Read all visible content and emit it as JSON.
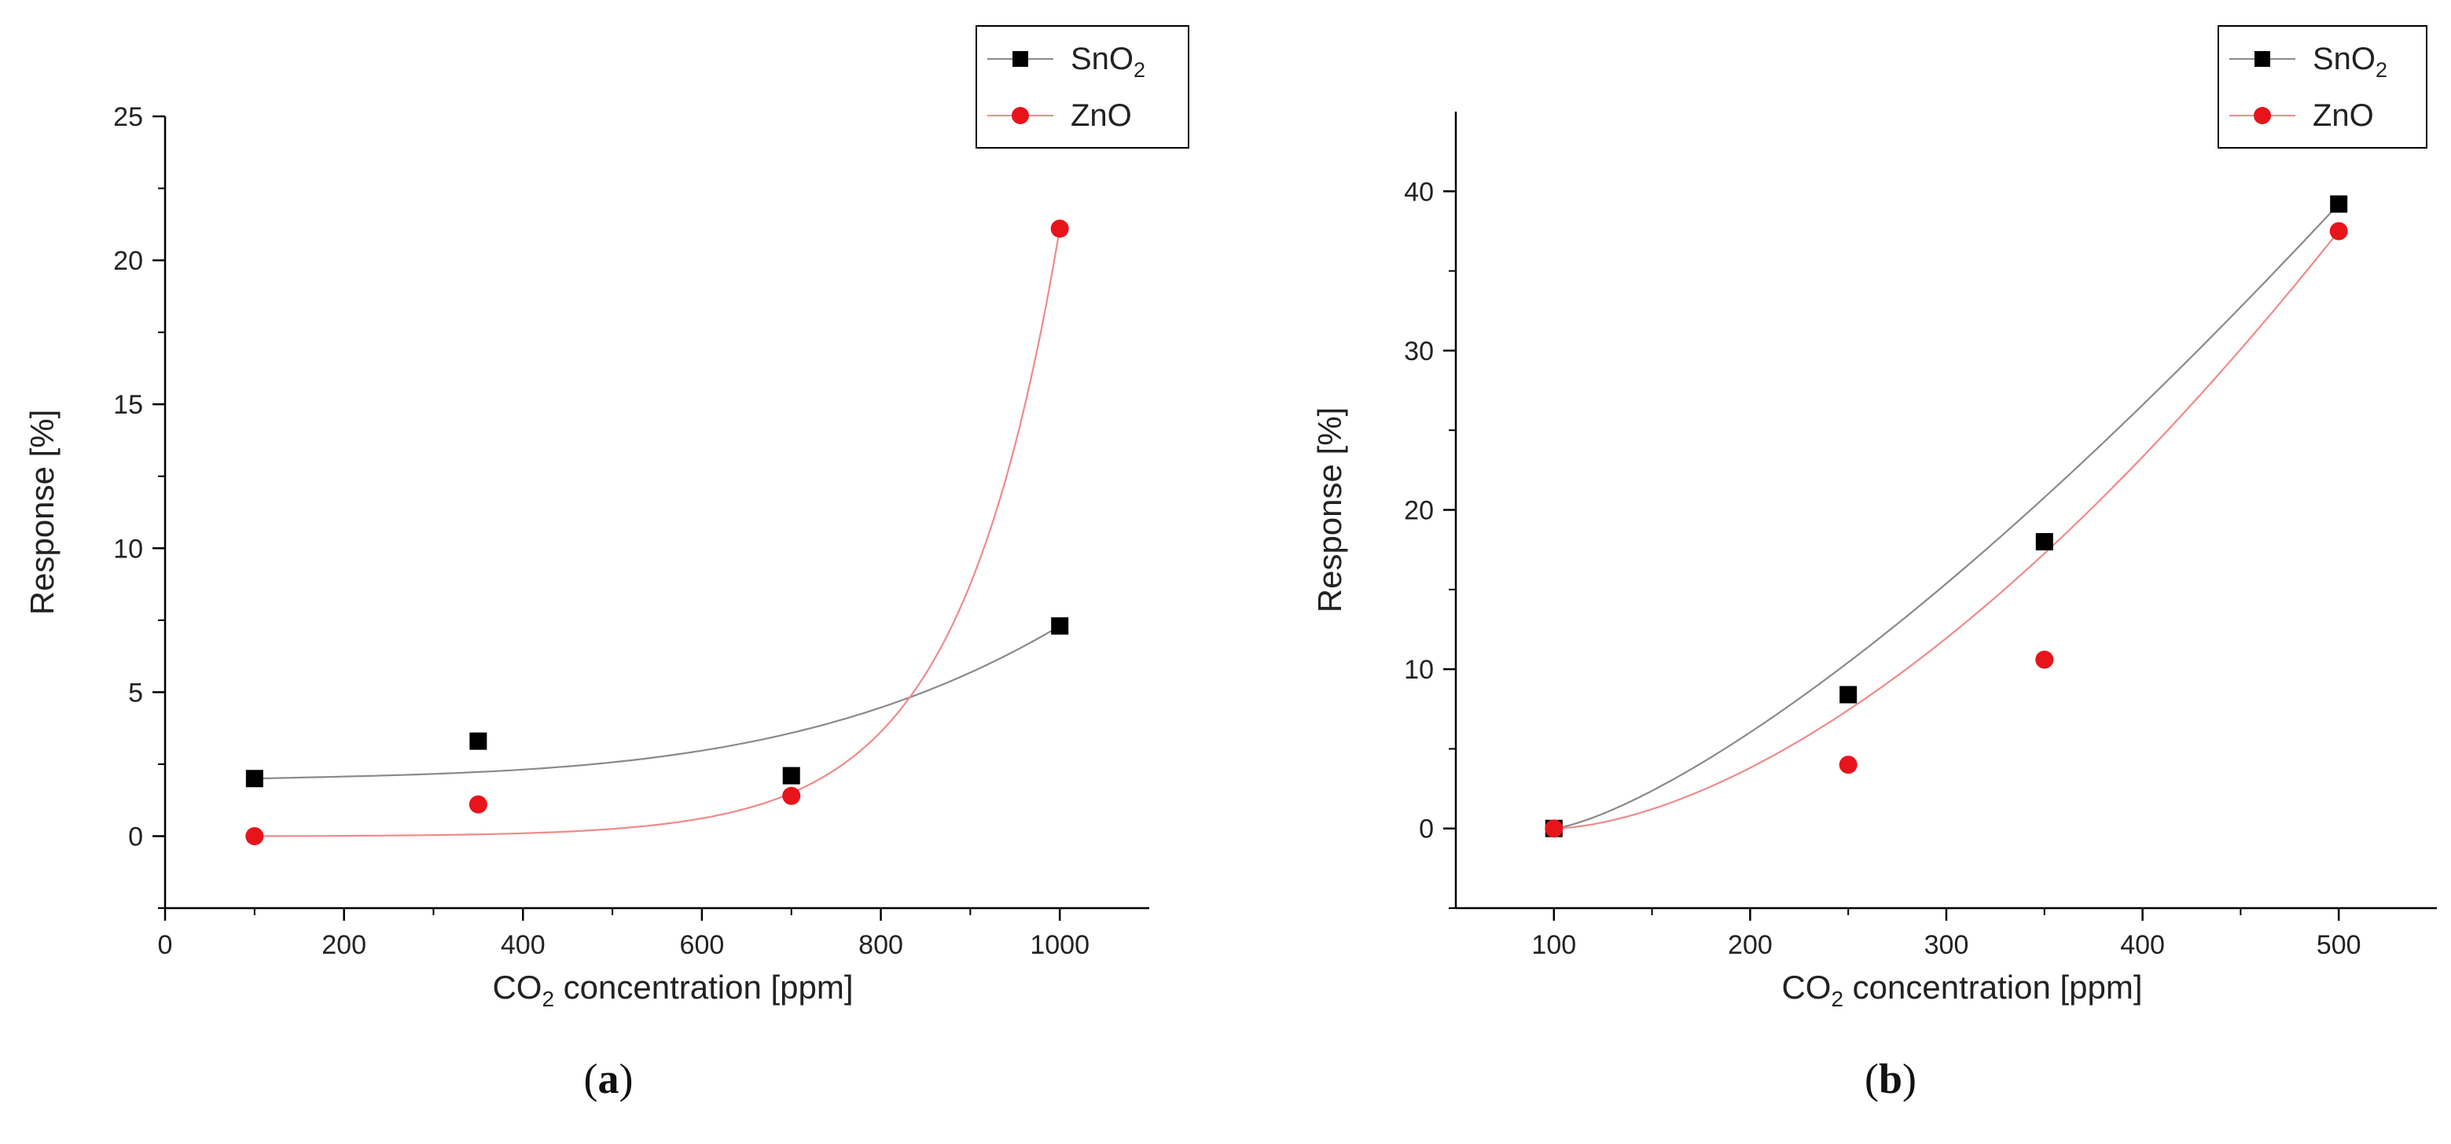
{
  "chart_data": [
    {
      "id": "a",
      "type": "scatter",
      "panel_label": "a",
      "title": "",
      "xlabel_prefix": "CO",
      "xlabel_sub": "2",
      "xlabel_suffix": " concentration [ppm]",
      "ylabel": "Response [%]",
      "xlim": [
        0,
        1100
      ],
      "ylim": [
        -2.5,
        25
      ],
      "xticks": [
        0,
        200,
        400,
        600,
        800,
        1000
      ],
      "yticks": [
        0,
        5,
        10,
        15,
        20,
        25
      ],
      "grid": false,
      "legend_position": "top-right",
      "series": [
        {
          "name": "SnO2",
          "legend_main": "SnO",
          "legend_sub": "2",
          "marker": "square",
          "color": "#000000",
          "fit_color": "#8a8a8a",
          "x": [
            100,
            350,
            700,
            1000
          ],
          "y": [
            2.0,
            3.3,
            2.1,
            7.3
          ]
        },
        {
          "name": "ZnO",
          "legend_main": "ZnO",
          "legend_sub": "",
          "marker": "circle",
          "color": "#e8141b",
          "fit_color": "#f08a8a",
          "x": [
            100,
            350,
            700,
            1000
          ],
          "y": [
            0.0,
            1.1,
            1.4,
            21.1
          ]
        }
      ]
    },
    {
      "id": "b",
      "type": "scatter",
      "panel_label": "b",
      "title": "",
      "xlabel_prefix": "CO",
      "xlabel_sub": "2",
      "xlabel_suffix": " concentration [ppm]",
      "ylabel": "Response [%]",
      "xlim": [
        50,
        550
      ],
      "ylim": [
        -5,
        45
      ],
      "xticks": [
        100,
        200,
        300,
        400,
        500
      ],
      "yticks": [
        0,
        10,
        20,
        30,
        40
      ],
      "grid": false,
      "legend_position": "top-right",
      "series": [
        {
          "name": "SnO2",
          "legend_main": "SnO",
          "legend_sub": "2",
          "marker": "square",
          "color": "#000000",
          "fit_color": "#8a8a8a",
          "x": [
            100,
            250,
            350,
            500
          ],
          "y": [
            0.0,
            8.4,
            18.0,
            39.2
          ]
        },
        {
          "name": "ZnO",
          "legend_main": "ZnO",
          "legend_sub": "",
          "marker": "circle",
          "color": "#e8141b",
          "fit_color": "#f08a8a",
          "x": [
            100,
            250,
            350,
            500
          ],
          "y": [
            0.0,
            4.0,
            10.6,
            37.5
          ]
        }
      ]
    }
  ]
}
